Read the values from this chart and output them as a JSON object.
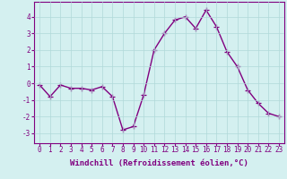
{
  "x": [
    0,
    1,
    2,
    3,
    4,
    5,
    6,
    7,
    8,
    9,
    10,
    11,
    12,
    13,
    14,
    15,
    16,
    17,
    18,
    19,
    20,
    21,
    22,
    23
  ],
  "y": [
    -0.1,
    -0.8,
    -0.1,
    -0.3,
    -0.3,
    -0.4,
    -0.2,
    -0.8,
    -2.8,
    -2.6,
    -0.7,
    2.0,
    3.0,
    3.8,
    4.0,
    3.3,
    4.4,
    3.4,
    1.9,
    1.0,
    -0.4,
    -1.2,
    -1.8,
    -2.0
  ],
  "line_color": "#800080",
  "marker": "+",
  "markersize": 4,
  "linewidth": 1.0,
  "background_color": "#d4f0f0",
  "grid_color": "#b0d8d8",
  "xlabel": "Windchill (Refroidissement éolien,°C)",
  "xlabel_fontsize": 6.5,
  "ylabel_ticks": [
    -3,
    -2,
    -1,
    0,
    1,
    2,
    3,
    4
  ],
  "xlim": [
    -0.5,
    23.5
  ],
  "ylim": [
    -3.6,
    4.9
  ],
  "tick_fontsize": 5.5,
  "axes_color": "#800080"
}
